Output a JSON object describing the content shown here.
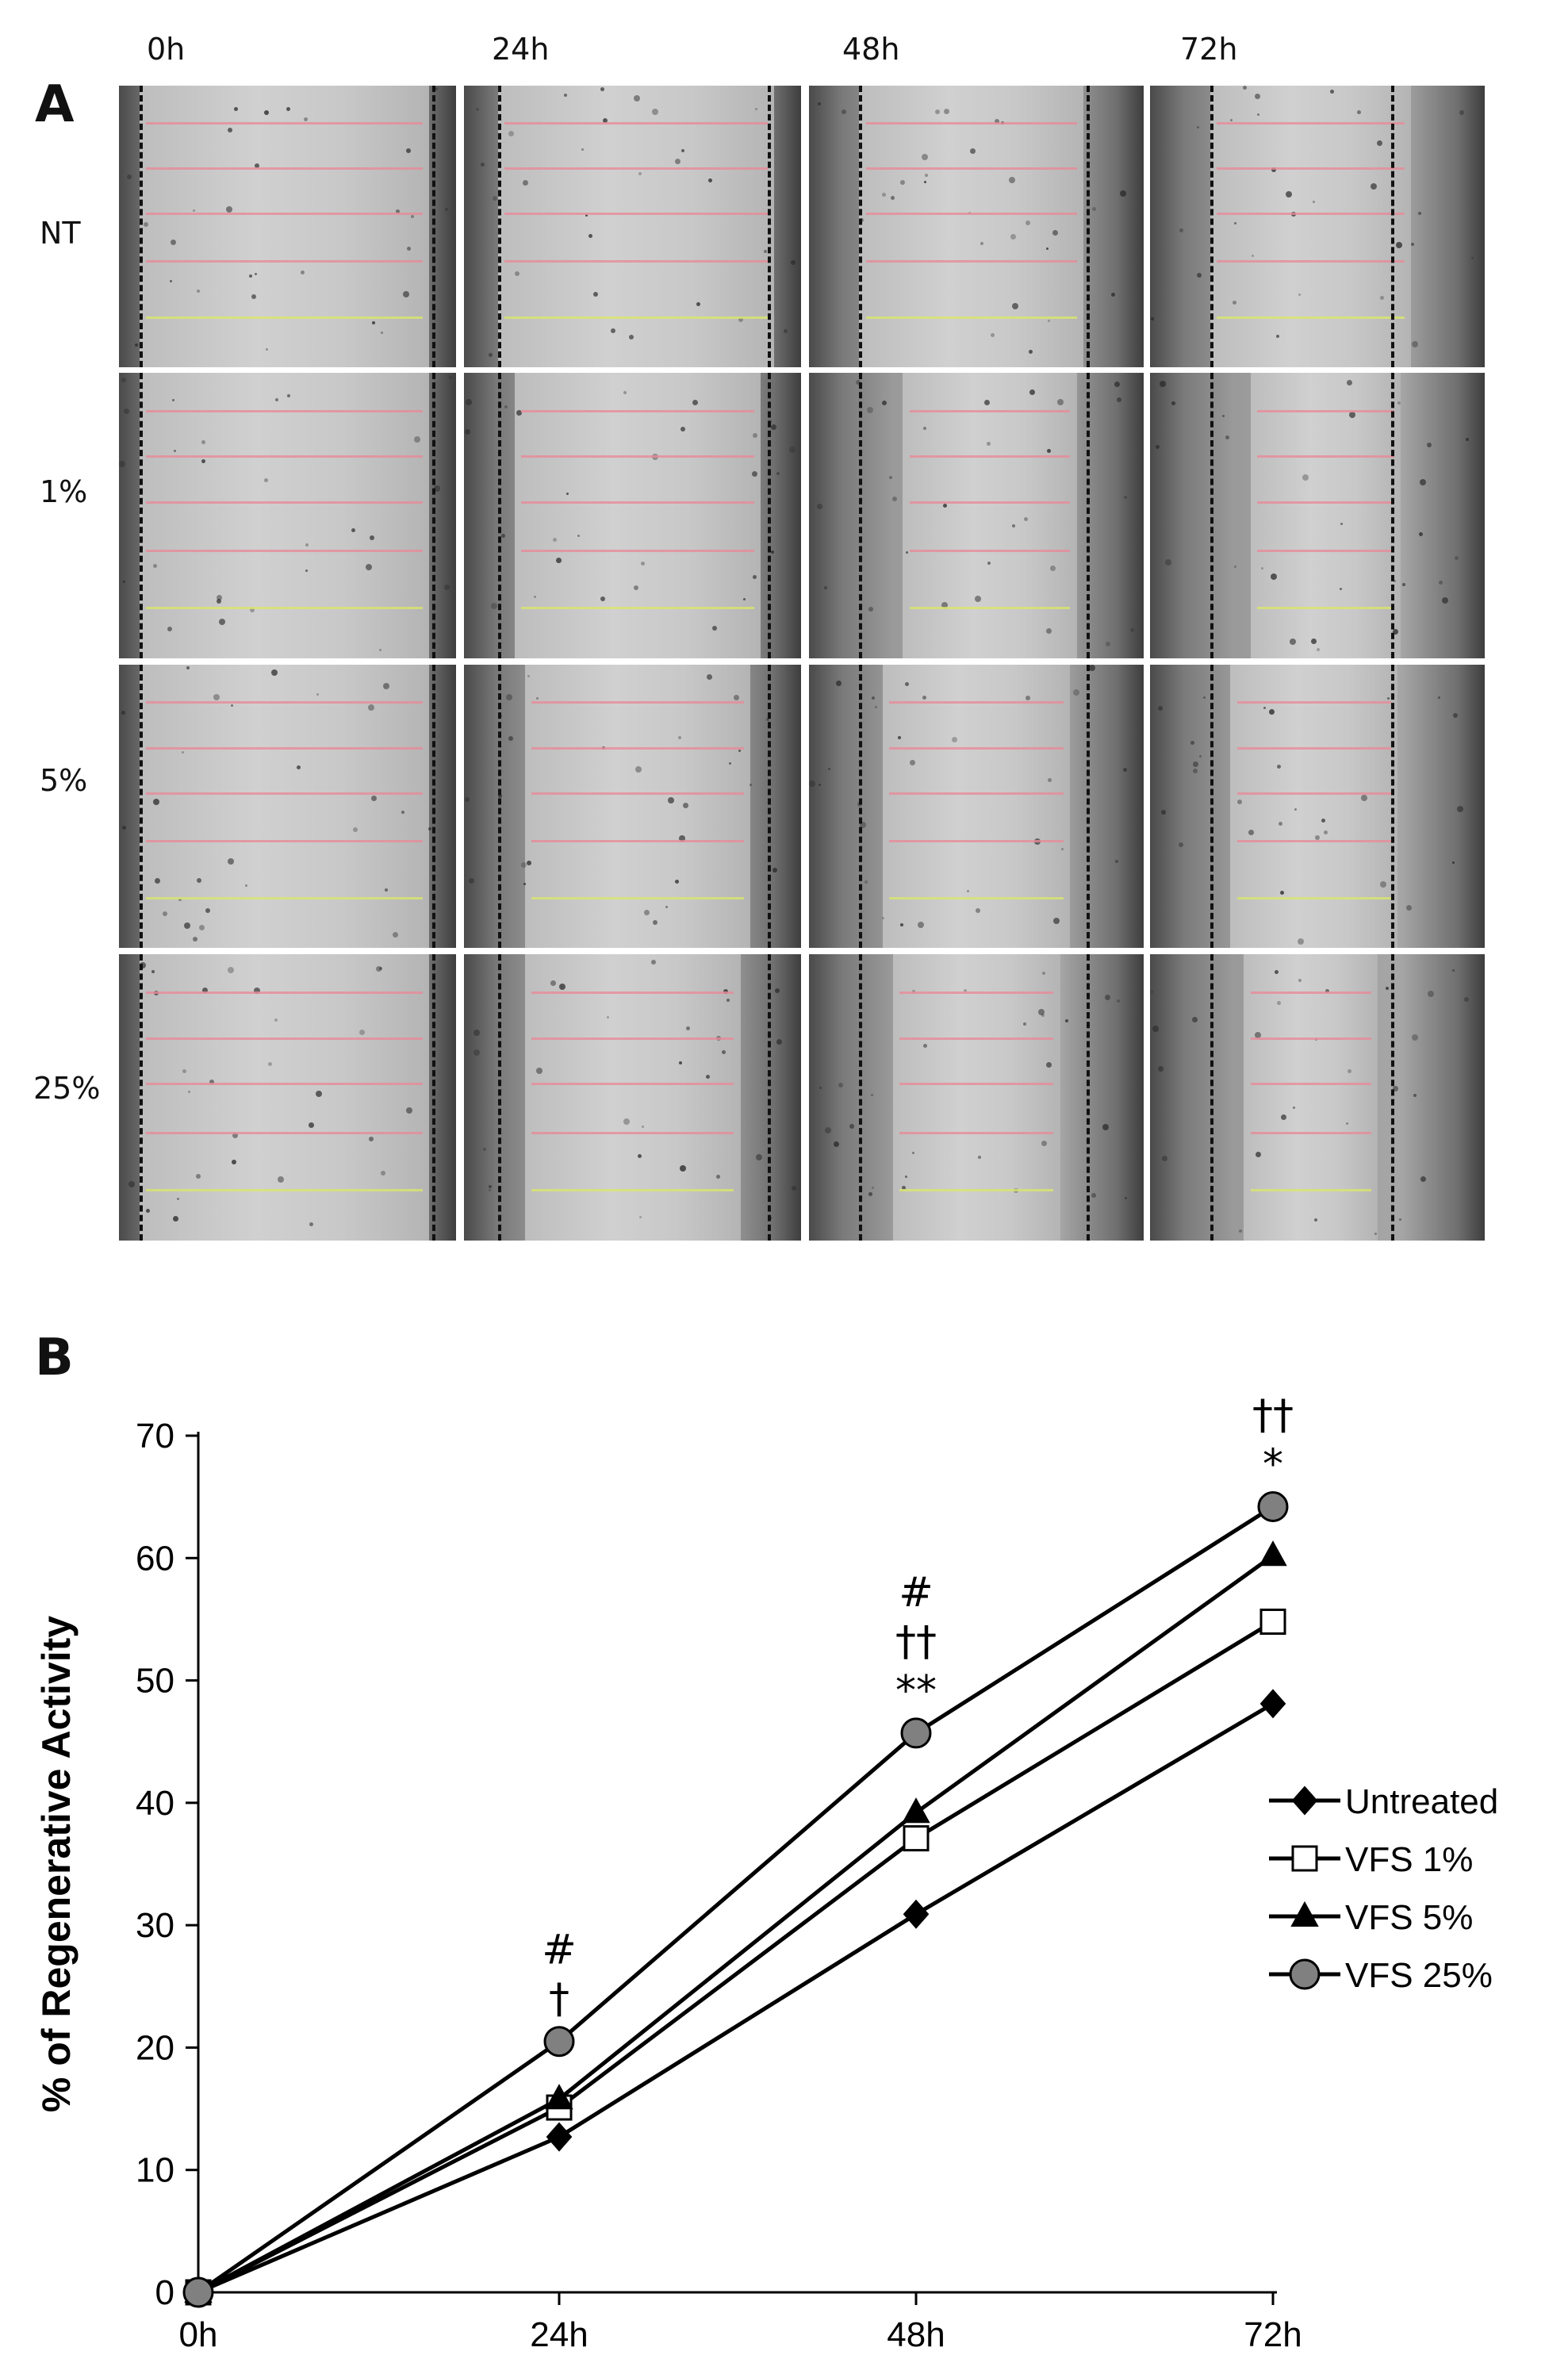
{
  "panel_a": {
    "label": "A",
    "columns": [
      "0h",
      "24h",
      "48h",
      "72h"
    ],
    "rows": [
      "NT",
      "1%",
      "5%",
      "25%"
    ]
  },
  "panel_b": {
    "label": "B"
  },
  "chart_data": {
    "type": "line",
    "categories": [
      "0h",
      "24h",
      "48h",
      "72h"
    ],
    "ylabel": "% of Regenerative Activity",
    "xlabel": "",
    "ylim": [
      0,
      70
    ],
    "yticks": [
      0,
      10,
      20,
      30,
      40,
      50,
      60,
      70
    ],
    "legend_position": "right",
    "series": [
      {
        "name": "Untreated",
        "marker": "diamond",
        "fill": "#000000",
        "values": [
          0,
          12.7,
          30.9,
          48.1
        ]
      },
      {
        "name": "VFS 1%",
        "marker": "square",
        "fill": "#ffffff",
        "values": [
          0,
          15.1,
          37.1,
          54.8
        ]
      },
      {
        "name": "VFS 5%",
        "marker": "triangle",
        "fill": "#000000",
        "values": [
          0,
          15.8,
          39.2,
          60.2
        ]
      },
      {
        "name": "VFS 25%",
        "marker": "circle",
        "fill": "#808080",
        "values": [
          0,
          20.5,
          45.7,
          64.2
        ]
      }
    ],
    "annotations": [
      {
        "category": "24h",
        "lines": [
          "#",
          "†"
        ]
      },
      {
        "category": "48h",
        "lines": [
          "#",
          "††",
          "**"
        ]
      },
      {
        "category": "72h",
        "lines": [
          "#",
          "††",
          "*"
        ]
      }
    ]
  }
}
